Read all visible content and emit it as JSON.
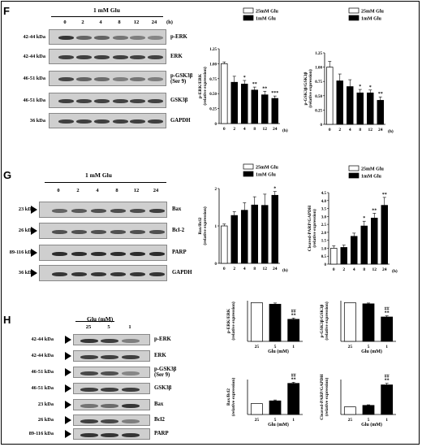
{
  "panels": {
    "F": {
      "label": "F",
      "treatment": "1 mM Glu",
      "timepoints": [
        "0",
        "2",
        "4",
        "8",
        "12",
        "24"
      ],
      "time_unit": "(h)",
      "blots": [
        {
          "kda": "42-44 kDa",
          "protein": "p-ERK",
          "intensity": [
            0.85,
            0.6,
            0.6,
            0.5,
            0.45,
            0.4
          ]
        },
        {
          "kda": "42-44 kDa",
          "protein": "ERK",
          "intensity": [
            0.8,
            0.8,
            0.8,
            0.8,
            0.78,
            0.78
          ]
        },
        {
          "kda": "46-51 kDa",
          "protein": "p-GSK3β (Ser 9)",
          "intensity": [
            0.75,
            0.6,
            0.55,
            0.45,
            0.5,
            0.45
          ]
        },
        {
          "kda": "46-51 kDa",
          "protein": "GSK3β",
          "intensity": [
            0.8,
            0.78,
            0.78,
            0.78,
            0.78,
            0.78
          ]
        },
        {
          "kda": "36 kDa",
          "protein": "GAPDH",
          "intensity": [
            0.8,
            0.8,
            0.8,
            0.8,
            0.8,
            0.8
          ]
        }
      ]
    },
    "G": {
      "label": "G",
      "treatment": "1 mM Glu",
      "timepoints": [
        "0",
        "2",
        "4",
        "8",
        "12",
        "24"
      ],
      "blots": [
        {
          "kda": "23 kDa",
          "protein": "Bax",
          "intensity": [
            0.6,
            0.65,
            0.7,
            0.72,
            0.72,
            0.8
          ]
        },
        {
          "kda": "26 kDa",
          "protein": "Bcl-2",
          "intensity": [
            0.7,
            0.7,
            0.7,
            0.7,
            0.7,
            0.7
          ]
        },
        {
          "kda": "89-116 kDa",
          "protein": "PARP",
          "intensity": [
            0.9,
            0.9,
            0.9,
            0.9,
            0.9,
            0.9
          ]
        },
        {
          "kda": "36 kDa",
          "protein": "GAPDH",
          "intensity": [
            0.85,
            0.85,
            0.85,
            0.85,
            0.85,
            0.85
          ]
        }
      ]
    },
    "H": {
      "label": "H",
      "treatment": "Glu (mM)",
      "conditions": [
        "25",
        "5",
        "1"
      ],
      "blots": [
        {
          "kda": "42-44 kDa",
          "protein": "p-ERK",
          "intensity": [
            0.85,
            0.8,
            0.45
          ]
        },
        {
          "kda": "42-44 kDa",
          "protein": "ERK",
          "intensity": [
            0.8,
            0.8,
            0.8
          ]
        },
        {
          "kda": "46-51 kDa",
          "protein": "p-GSK3β (Ser 9)",
          "intensity": [
            0.75,
            0.7,
            0.4
          ]
        },
        {
          "kda": "46-51 kDa",
          "protein": "GSK3β",
          "intensity": [
            0.8,
            0.8,
            0.8
          ]
        },
        {
          "kda": "23 kDa",
          "protein": "Bax",
          "intensity": [
            0.5,
            0.55,
            0.85
          ]
        },
        {
          "kda": "26  kDa",
          "protein": "Bcl2",
          "intensity": [
            0.8,
            0.75,
            0.45
          ]
        },
        {
          "kda": "89-116 kDa",
          "protein": "PARP",
          "intensity": [
            0.85,
            0.85,
            0.85
          ]
        },
        {
          "kda": "36 kDa",
          "protein": "GAPDH",
          "intensity": [
            0.85,
            0.85,
            0.85
          ]
        }
      ]
    }
  },
  "colors": {
    "control_bar": "#ffffff",
    "treated_bar": "#000000",
    "blot_bg": "#cfcfcf",
    "band": "#1a1a1a"
  },
  "chart_data": [
    {
      "type": "bar",
      "panel": "F",
      "ylabel": "p-ERK/ERK (relative expression)",
      "categories": [
        "0",
        "2",
        "4",
        "8",
        "12",
        "24"
      ],
      "xunit": "(h)",
      "yticks": [
        "0",
        "0.25",
        "0.50",
        "0.75",
        "1.00",
        "1.25"
      ],
      "ylim": [
        0,
        1.25
      ],
      "legend": [
        "25mM Glu",
        "1mM Glu"
      ],
      "values": [
        1.0,
        0.69,
        0.66,
        0.56,
        0.48,
        0.42
      ],
      "errors": [
        0.03,
        0.1,
        0.06,
        0.05,
        0.06,
        0.04
      ],
      "fills": [
        "control",
        "treated",
        "treated",
        "treated",
        "treated",
        "treated"
      ],
      "annotations": [
        "",
        "",
        "*",
        "**",
        "**",
        "***"
      ]
    },
    {
      "type": "bar",
      "panel": "F",
      "ylabel": "p-GSK3β/GSK3β (relative expression)",
      "categories": [
        "0",
        "2",
        "4",
        "8",
        "12",
        "24"
      ],
      "xunit": "(h)",
      "yticks": [
        "0",
        "0.25",
        "0.50",
        "0.75",
        "1.00",
        "1.25"
      ],
      "ylim": [
        0,
        1.25
      ],
      "legend": [
        "25mM Glu",
        "1mM Glu"
      ],
      "values": [
        1.0,
        0.76,
        0.66,
        0.55,
        0.55,
        0.42
      ],
      "errors": [
        0.1,
        0.12,
        0.12,
        0.06,
        0.05,
        0.06
      ],
      "fills": [
        "control",
        "treated",
        "treated",
        "treated",
        "treated",
        "treated"
      ],
      "annotations": [
        "",
        "",
        "",
        "*",
        "*",
        "**"
      ]
    },
    {
      "type": "bar",
      "panel": "G",
      "ylabel": "Bax/Bcl2 (relative expression)",
      "categories": [
        "0",
        "2",
        "4",
        "8",
        "12",
        "24"
      ],
      "xunit": "(h)",
      "yticks": [
        "0",
        "1",
        "2"
      ],
      "ylim": [
        0,
        2
      ],
      "legend": [
        "25mM Glu",
        "1mM Glu"
      ],
      "values": [
        1.0,
        1.28,
        1.42,
        1.56,
        1.55,
        1.82
      ],
      "errors": [
        0.05,
        0.1,
        0.2,
        0.22,
        0.3,
        0.1
      ],
      "fills": [
        "control",
        "treated",
        "treated",
        "treated",
        "treated",
        "treated"
      ],
      "annotations": [
        "",
        "",
        "",
        "",
        "",
        "*"
      ]
    },
    {
      "type": "bar",
      "panel": "G",
      "ylabel": "Cleaved-PARP/GAPDH (relative expression)",
      "categories": [
        "0",
        "2",
        "4",
        "8",
        "12",
        "24"
      ],
      "xunit": "(h)",
      "yticks": [
        "0",
        "0.5",
        "1.0",
        "1.5",
        "2.0",
        "2.5",
        "3.0",
        "3.5",
        "4.0",
        "4.5"
      ],
      "ylim": [
        0,
        4.5
      ],
      "legend": [
        "25mM Glu",
        "1mM Glu"
      ],
      "values": [
        1.0,
        1.05,
        1.75,
        2.4,
        2.9,
        3.7
      ],
      "errors": [
        0.15,
        0.15,
        0.2,
        0.3,
        0.3,
        0.5
      ],
      "fills": [
        "control",
        "treated",
        "treated",
        "treated",
        "treated",
        "treated"
      ],
      "annotations": [
        "",
        "",
        "",
        "*",
        "**",
        "**"
      ]
    },
    {
      "type": "bar",
      "panel": "H",
      "ylabel": "p-ERK/ERK (relative expression)",
      "categories": [
        "25",
        "5",
        "1"
      ],
      "xlabel": "Glu (mM)",
      "yticks": [],
      "ylim": [
        0,
        1.05
      ],
      "values": [
        1.0,
        0.96,
        0.57
      ],
      "errors": [
        0.0,
        0.03,
        0.03
      ],
      "fills": [
        "control",
        "treated",
        "treated"
      ],
      "annotations": [
        "",
        "",
        "##\n**"
      ]
    },
    {
      "type": "bar",
      "panel": "H",
      "ylabel": "p-GSK3β/GSK3β (relative expression)",
      "categories": [
        "25",
        "5",
        "1"
      ],
      "xlabel": "Glu (mM)",
      "yticks": [],
      "ylim": [
        0,
        1.05
      ],
      "values": [
        1.0,
        0.97,
        0.63
      ],
      "errors": [
        0.0,
        0.02,
        0.03
      ],
      "fills": [
        "control",
        "treated",
        "treated"
      ],
      "annotations": [
        "",
        "",
        "##\n**"
      ]
    },
    {
      "type": "bar",
      "panel": "H",
      "ylabel": "Bax/Bcl2 (relative expression)",
      "categories": [
        "25",
        "5",
        "1"
      ],
      "xlabel": "Glu (mM)",
      "yticks": [],
      "ylim": [
        0,
        3.2
      ],
      "values": [
        1.0,
        1.25,
        2.85
      ],
      "errors": [
        0.0,
        0.08,
        0.1
      ],
      "fills": [
        "control",
        "treated",
        "treated"
      ],
      "annotations": [
        "",
        "",
        "##\n**"
      ]
    },
    {
      "type": "bar",
      "panel": "H",
      "ylabel": "Cleaved-PARP/GAPDH (relative expression)",
      "categories": [
        "25",
        "5",
        "1"
      ],
      "xlabel": "Glu (mM)",
      "yticks": [],
      "ylim": [
        0,
        4.6
      ],
      "values": [
        1.0,
        1.2,
        3.9
      ],
      "errors": [
        0.0,
        0.08,
        0.2
      ],
      "fills": [
        "control",
        "treated",
        "treated"
      ],
      "annotations": [
        "",
        "",
        "##\n**"
      ]
    }
  ]
}
